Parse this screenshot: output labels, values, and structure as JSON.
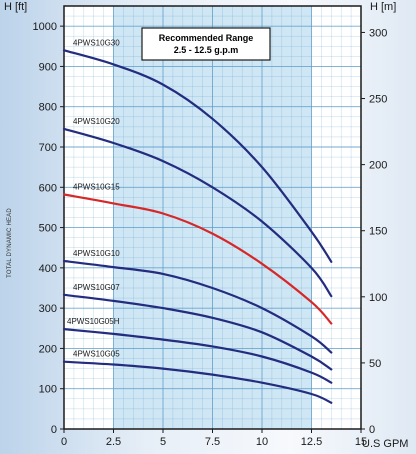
{
  "chart_data": {
    "type": "line",
    "title": "",
    "xlabel": "U.S GPM",
    "ylabel_left": "H [ft]",
    "ylabel_right": "H [m]",
    "side_label": "TOTAL DYNAMIC HEAD",
    "x_range": [
      0,
      15
    ],
    "y_left_range": [
      0,
      1050
    ],
    "y_right_range": [
      0,
      320
    ],
    "x_ticks": [
      "0",
      "2.5",
      "5",
      "7.5",
      "10",
      "12.5",
      "15"
    ],
    "y_left_ticks": [
      "0",
      "100",
      "200",
      "300",
      "400",
      "500",
      "600",
      "700",
      "800",
      "900",
      "1000"
    ],
    "y_right_ticks": [
      "0",
      "50",
      "100",
      "150",
      "200",
      "250",
      "300"
    ],
    "recommended_range": {
      "line1": "Recommended Range",
      "line2": "2.5 - 12.5 g.p.m",
      "x_from": 2.5,
      "x_to": 12.5
    },
    "grid": true,
    "colors": {
      "curve": "#232c7e",
      "highlight": "#d62828",
      "band": "#cfe6f4",
      "grid": "#5a9bc8"
    },
    "series": [
      {
        "name": "4PWS10G30",
        "highlight": false,
        "x": [
          0,
          2.5,
          5,
          7.5,
          10,
          12.5,
          13.5
        ],
        "y": [
          940,
          905,
          855,
          770,
          650,
          490,
          415
        ]
      },
      {
        "name": "4PWS10G20",
        "highlight": false,
        "x": [
          0,
          2.5,
          5,
          7.5,
          10,
          12.5,
          13.5
        ],
        "y": [
          745,
          710,
          665,
          600,
          515,
          400,
          330
        ]
      },
      {
        "name": "4PWS10G15",
        "highlight": true,
        "x": [
          0,
          2.5,
          5,
          7.5,
          10,
          12.5,
          13.5
        ],
        "y": [
          582,
          560,
          535,
          485,
          410,
          315,
          262
        ]
      },
      {
        "name": "4PWS10G10",
        "highlight": false,
        "x": [
          0,
          2.5,
          5,
          7.5,
          10,
          12.5,
          13.5
        ],
        "y": [
          417,
          402,
          385,
          350,
          300,
          230,
          190
        ]
      },
      {
        "name": "4PWS10G07",
        "highlight": false,
        "x": [
          0,
          2.5,
          5,
          7.5,
          10,
          12.5,
          13.5
        ],
        "y": [
          333,
          318,
          300,
          276,
          240,
          180,
          148
        ]
      },
      {
        "name": "4PWS10G05H",
        "highlight": false,
        "x": [
          0,
          2.5,
          5,
          7.5,
          10,
          12.5,
          13.5
        ],
        "y": [
          248,
          236,
          222,
          205,
          180,
          140,
          115
        ]
      },
      {
        "name": "4PWS10G05",
        "highlight": false,
        "x": [
          0,
          2.5,
          5,
          7.5,
          10,
          12.5,
          13.5
        ],
        "y": [
          167,
          160,
          150,
          135,
          115,
          87,
          65
        ]
      }
    ]
  }
}
